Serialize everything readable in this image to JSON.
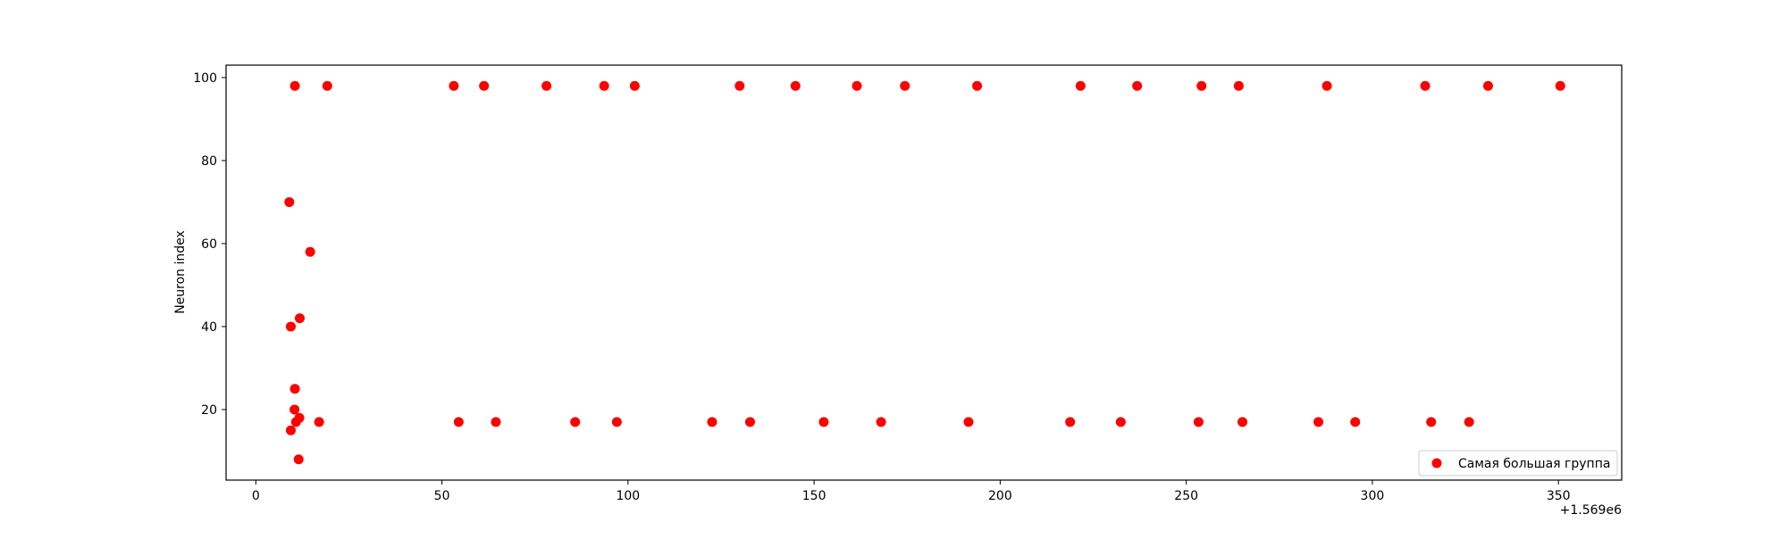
{
  "chart_data": {
    "type": "scatter",
    "title": "",
    "xlabel": "",
    "ylabel": "Neuron index",
    "x_offset_label": "+1.569e6",
    "xlim": [
      -8,
      367
    ],
    "ylim": [
      3,
      103
    ],
    "xticks": [
      0,
      50,
      100,
      150,
      200,
      250,
      300,
      350
    ],
    "yticks": [
      20,
      40,
      60,
      80,
      100
    ],
    "grid": false,
    "legend_position": "lower right",
    "series": [
      {
        "name": "Самая большая группа",
        "color": "#ff0000",
        "points": [
          [
            10.5,
            98
          ],
          [
            19.2,
            98
          ],
          [
            53.2,
            98
          ],
          [
            61.3,
            98
          ],
          [
            78.1,
            98
          ],
          [
            93.6,
            98
          ],
          [
            101.8,
            98
          ],
          [
            130,
            98
          ],
          [
            145,
            98
          ],
          [
            161.5,
            98
          ],
          [
            174.4,
            98
          ],
          [
            193.8,
            98
          ],
          [
            221.6,
            98
          ],
          [
            236.8,
            98
          ],
          [
            254.1,
            98
          ],
          [
            264.1,
            98
          ],
          [
            287.8,
            98
          ],
          [
            314.2,
            98
          ],
          [
            331.1,
            98
          ],
          [
            350.5,
            98
          ],
          [
            9,
            70
          ],
          [
            14.6,
            58
          ],
          [
            11.8,
            42
          ],
          [
            9.4,
            40
          ],
          [
            10.5,
            25
          ],
          [
            10.4,
            20
          ],
          [
            11.7,
            18
          ],
          [
            10.8,
            17
          ],
          [
            9.4,
            15
          ],
          [
            11.5,
            8
          ],
          [
            17,
            17
          ],
          [
            54.5,
            17
          ],
          [
            64.5,
            17
          ],
          [
            85.8,
            17
          ],
          [
            97,
            17
          ],
          [
            122.6,
            17
          ],
          [
            132.8,
            17
          ],
          [
            152.6,
            17
          ],
          [
            168,
            17
          ],
          [
            191.5,
            17
          ],
          [
            218.8,
            17
          ],
          [
            232.4,
            17
          ],
          [
            253.3,
            17
          ],
          [
            265.1,
            17
          ],
          [
            285.5,
            17
          ],
          [
            295.4,
            17
          ],
          [
            315.8,
            17
          ],
          [
            326,
            17
          ]
        ]
      }
    ]
  }
}
